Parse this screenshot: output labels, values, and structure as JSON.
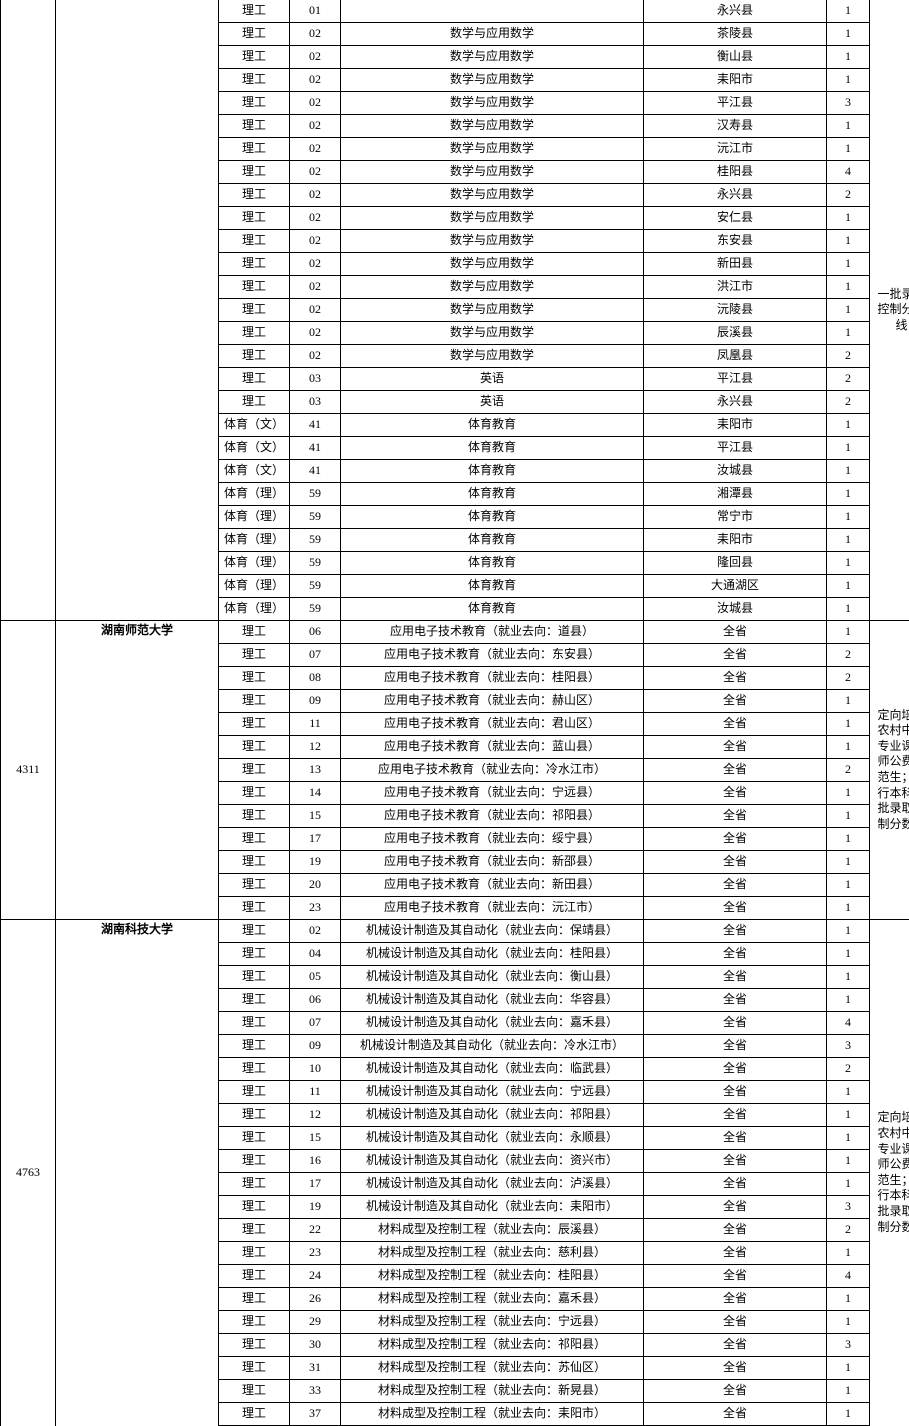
{
  "sections": [
    {
      "code": "",
      "univ": "",
      "note_lines": [
        "一批录取",
        "控制分数",
        "线"
      ],
      "note_top_cut": true,
      "rows": [
        {
          "cat": "理工",
          "num": "01",
          "major": "",
          "region": "永兴县",
          "count": "1",
          "cut": true
        },
        {
          "cat": "理工",
          "num": "02",
          "major": "数学与应用数学",
          "region": "茶陵县",
          "count": "1"
        },
        {
          "cat": "理工",
          "num": "02",
          "major": "数学与应用数学",
          "region": "衡山县",
          "count": "1"
        },
        {
          "cat": "理工",
          "num": "02",
          "major": "数学与应用数学",
          "region": "耒阳市",
          "count": "1"
        },
        {
          "cat": "理工",
          "num": "02",
          "major": "数学与应用数学",
          "region": "平江县",
          "count": "3"
        },
        {
          "cat": "理工",
          "num": "02",
          "major": "数学与应用数学",
          "region": "汉寿县",
          "count": "1"
        },
        {
          "cat": "理工",
          "num": "02",
          "major": "数学与应用数学",
          "region": "沅江市",
          "count": "1"
        },
        {
          "cat": "理工",
          "num": "02",
          "major": "数学与应用数学",
          "region": "桂阳县",
          "count": "4"
        },
        {
          "cat": "理工",
          "num": "02",
          "major": "数学与应用数学",
          "region": "永兴县",
          "count": "2"
        },
        {
          "cat": "理工",
          "num": "02",
          "major": "数学与应用数学",
          "region": "安仁县",
          "count": "1"
        },
        {
          "cat": "理工",
          "num": "02",
          "major": "数学与应用数学",
          "region": "东安县",
          "count": "1"
        },
        {
          "cat": "理工",
          "num": "02",
          "major": "数学与应用数学",
          "region": "新田县",
          "count": "1"
        },
        {
          "cat": "理工",
          "num": "02",
          "major": "数学与应用数学",
          "region": "洪江市",
          "count": "1"
        },
        {
          "cat": "理工",
          "num": "02",
          "major": "数学与应用数学",
          "region": "沅陵县",
          "count": "1"
        },
        {
          "cat": "理工",
          "num": "02",
          "major": "数学与应用数学",
          "region": "辰溪县",
          "count": "1"
        },
        {
          "cat": "理工",
          "num": "02",
          "major": "数学与应用数学",
          "region": "凤凰县",
          "count": "2"
        },
        {
          "cat": "理工",
          "num": "03",
          "major": "英语",
          "region": "平江县",
          "count": "2"
        },
        {
          "cat": "理工",
          "num": "03",
          "major": "英语",
          "region": "永兴县",
          "count": "2"
        },
        {
          "cat": "体育（文）",
          "num": "41",
          "major": "体育教育",
          "region": "耒阳市",
          "count": "1"
        },
        {
          "cat": "体育（文）",
          "num": "41",
          "major": "体育教育",
          "region": "平江县",
          "count": "1"
        },
        {
          "cat": "体育（文）",
          "num": "41",
          "major": "体育教育",
          "region": "汝城县",
          "count": "1"
        },
        {
          "cat": "体育（理）",
          "num": "59",
          "major": "体育教育",
          "region": "湘潭县",
          "count": "1"
        },
        {
          "cat": "体育（理）",
          "num": "59",
          "major": "体育教育",
          "region": "常宁市",
          "count": "1"
        },
        {
          "cat": "体育（理）",
          "num": "59",
          "major": "体育教育",
          "region": "耒阳市",
          "count": "1"
        },
        {
          "cat": "体育（理）",
          "num": "59",
          "major": "体育教育",
          "region": "隆回县",
          "count": "1"
        },
        {
          "cat": "体育（理）",
          "num": "59",
          "major": "体育教育",
          "region": "大通湖区",
          "count": "1"
        },
        {
          "cat": "体育（理）",
          "num": "59",
          "major": "体育教育",
          "region": "汝城县",
          "count": "1"
        }
      ]
    },
    {
      "code": "4311",
      "univ": "湖南师范大学",
      "note_lines": [
        "定向培养",
        "农村中职",
        "专业课教",
        "师公费师",
        "范生；执",
        "行本科一",
        "批录取控",
        "制分数线"
      ],
      "rows": [
        {
          "cat": "理工",
          "num": "06",
          "major": "应用电子技术教育（就业去向：道县）",
          "region": "全省",
          "count": "1"
        },
        {
          "cat": "理工",
          "num": "07",
          "major": "应用电子技术教育（就业去向：东安县）",
          "region": "全省",
          "count": "2"
        },
        {
          "cat": "理工",
          "num": "08",
          "major": "应用电子技术教育（就业去向：桂阳县）",
          "region": "全省",
          "count": "2"
        },
        {
          "cat": "理工",
          "num": "09",
          "major": "应用电子技术教育（就业去向：赫山区）",
          "region": "全省",
          "count": "1"
        },
        {
          "cat": "理工",
          "num": "11",
          "major": "应用电子技术教育（就业去向：君山区）",
          "region": "全省",
          "count": "1"
        },
        {
          "cat": "理工",
          "num": "12",
          "major": "应用电子技术教育（就业去向：蓝山县）",
          "region": "全省",
          "count": "1"
        },
        {
          "cat": "理工",
          "num": "13",
          "major": "应用电子技术教育（就业去向：冷水江市）",
          "region": "全省",
          "count": "2"
        },
        {
          "cat": "理工",
          "num": "14",
          "major": "应用电子技术教育（就业去向：宁远县）",
          "region": "全省",
          "count": "1"
        },
        {
          "cat": "理工",
          "num": "15",
          "major": "应用电子技术教育（就业去向：祁阳县）",
          "region": "全省",
          "count": "1"
        },
        {
          "cat": "理工",
          "num": "17",
          "major": "应用电子技术教育（就业去向：绥宁县）",
          "region": "全省",
          "count": "1"
        },
        {
          "cat": "理工",
          "num": "19",
          "major": "应用电子技术教育（就业去向：新邵县）",
          "region": "全省",
          "count": "1"
        },
        {
          "cat": "理工",
          "num": "20",
          "major": "应用电子技术教育（就业去向：新田县）",
          "region": "全省",
          "count": "1"
        },
        {
          "cat": "理工",
          "num": "23",
          "major": "应用电子技术教育（就业去向：沅江市）",
          "region": "全省",
          "count": "1"
        }
      ]
    },
    {
      "code": "4763",
      "univ": "湖南科技大学",
      "note_lines": [
        "定向培养",
        "农村中职",
        "专业课教",
        "师公费师",
        "范生；执",
        "行本科一",
        "批录取控",
        "制分数线"
      ],
      "bottom_cut": true,
      "rows": [
        {
          "cat": "理工",
          "num": "02",
          "major": "机械设计制造及其自动化（就业去向：保靖县）",
          "region": "全省",
          "count": "1"
        },
        {
          "cat": "理工",
          "num": "04",
          "major": "机械设计制造及其自动化（就业去向：桂阳县）",
          "region": "全省",
          "count": "1"
        },
        {
          "cat": "理工",
          "num": "05",
          "major": "机械设计制造及其自动化（就业去向：衡山县）",
          "region": "全省",
          "count": "1"
        },
        {
          "cat": "理工",
          "num": "06",
          "major": "机械设计制造及其自动化（就业去向：华容县）",
          "region": "全省",
          "count": "1"
        },
        {
          "cat": "理工",
          "num": "07",
          "major": "机械设计制造及其自动化（就业去向：嘉禾县）",
          "region": "全省",
          "count": "4"
        },
        {
          "cat": "理工",
          "num": "09",
          "major": "机械设计制造及其自动化（就业去向：冷水江市）",
          "region": "全省",
          "count": "3"
        },
        {
          "cat": "理工",
          "num": "10",
          "major": "机械设计制造及其自动化（就业去向：临武县）",
          "region": "全省",
          "count": "2"
        },
        {
          "cat": "理工",
          "num": "11",
          "major": "机械设计制造及其自动化（就业去向：宁远县）",
          "region": "全省",
          "count": "1"
        },
        {
          "cat": "理工",
          "num": "12",
          "major": "机械设计制造及其自动化（就业去向：祁阳县）",
          "region": "全省",
          "count": "1"
        },
        {
          "cat": "理工",
          "num": "15",
          "major": "机械设计制造及其自动化（就业去向：永顺县）",
          "region": "全省",
          "count": "1"
        },
        {
          "cat": "理工",
          "num": "16",
          "major": "机械设计制造及其自动化（就业去向：资兴市）",
          "region": "全省",
          "count": "1"
        },
        {
          "cat": "理工",
          "num": "17",
          "major": "机械设计制造及其自动化（就业去向：泸溪县）",
          "region": "全省",
          "count": "1"
        },
        {
          "cat": "理工",
          "num": "19",
          "major": "机械设计制造及其自动化（就业去向：耒阳市）",
          "region": "全省",
          "count": "3"
        },
        {
          "cat": "理工",
          "num": "22",
          "major": "材料成型及控制工程（就业去向：辰溪县）",
          "region": "全省",
          "count": "2"
        },
        {
          "cat": "理工",
          "num": "23",
          "major": "材料成型及控制工程（就业去向：慈利县）",
          "region": "全省",
          "count": "1"
        },
        {
          "cat": "理工",
          "num": "24",
          "major": "材料成型及控制工程（就业去向：桂阳县）",
          "region": "全省",
          "count": "4"
        },
        {
          "cat": "理工",
          "num": "26",
          "major": "材料成型及控制工程（就业去向：嘉禾县）",
          "region": "全省",
          "count": "1"
        },
        {
          "cat": "理工",
          "num": "29",
          "major": "材料成型及控制工程（就业去向：宁远县）",
          "region": "全省",
          "count": "1"
        },
        {
          "cat": "理工",
          "num": "30",
          "major": "材料成型及控制工程（就业去向：祁阳县）",
          "region": "全省",
          "count": "3"
        },
        {
          "cat": "理工",
          "num": "31",
          "major": "材料成型及控制工程（就业去向：苏仙区）",
          "region": "全省",
          "count": "1"
        },
        {
          "cat": "理工",
          "num": "33",
          "major": "材料成型及控制工程（就业去向：新晃县）",
          "region": "全省",
          "count": "1"
        },
        {
          "cat": "理工",
          "num": "37",
          "major": "材料成型及控制工程（就业去向：耒阳市）",
          "region": "全省",
          "count": "1"
        }
      ]
    }
  ]
}
